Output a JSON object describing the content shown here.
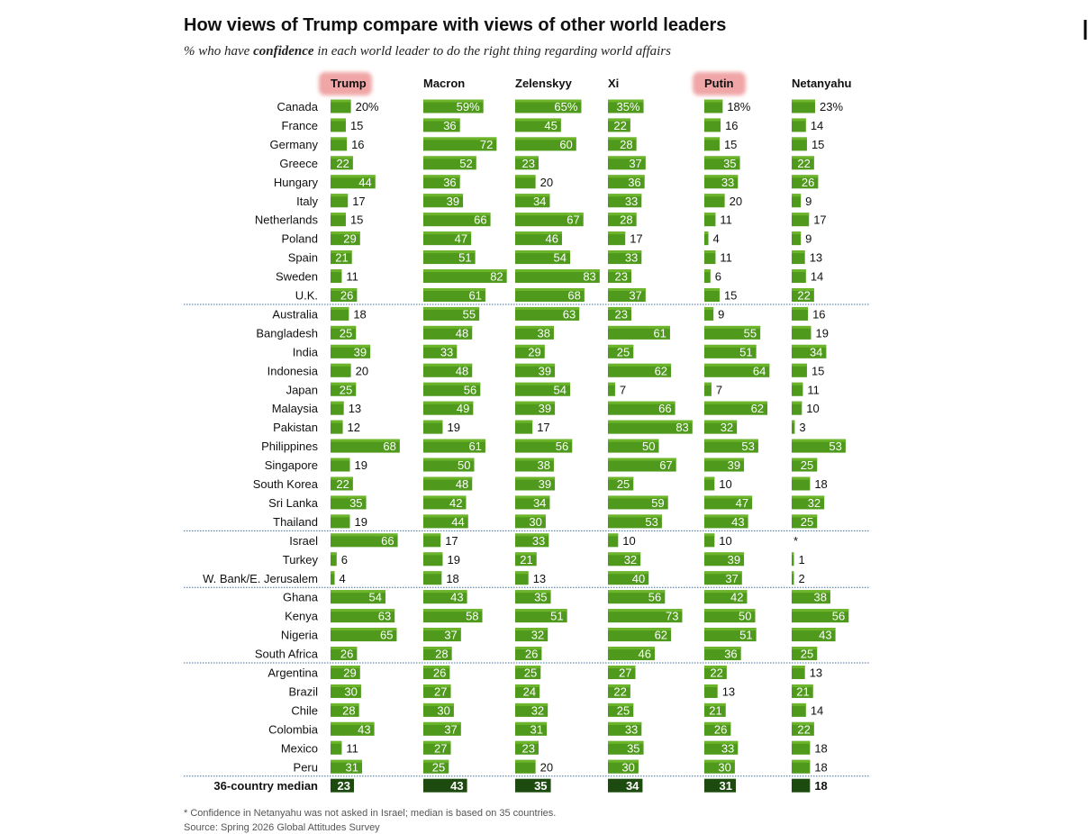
{
  "chart_data": {
    "type": "bar",
    "title": "How views of Trump compare with views of other world leaders",
    "subtitle_pre": "% who have ",
    "subtitle_emphasis": "confidence",
    "subtitle_post": " in each world leader to do the right thing regarding world affairs",
    "leaders": [
      "Trump",
      "Macron",
      "Zelenskyy",
      "Xi",
      "Putin",
      "Netanyahu"
    ],
    "highlighted_leaders": [
      "Trump",
      "Putin"
    ],
    "groups": [
      {
        "rows": [
          {
            "country": "Canada",
            "values": [
              20,
              59,
              65,
              35,
              18,
              23
            ],
            "labels": [
              "20%",
              "59%",
              "65%",
              "35%",
              "18%",
              "23%"
            ]
          },
          {
            "country": "France",
            "values": [
              15,
              36,
              45,
              22,
              16,
              14
            ]
          },
          {
            "country": "Germany",
            "values": [
              16,
              72,
              60,
              28,
              15,
              15
            ]
          },
          {
            "country": "Greece",
            "values": [
              22,
              52,
              23,
              37,
              35,
              22
            ]
          },
          {
            "country": "Hungary",
            "values": [
              44,
              36,
              20,
              36,
              33,
              26
            ]
          },
          {
            "country": "Italy",
            "values": [
              17,
              39,
              34,
              33,
              20,
              9
            ]
          },
          {
            "country": "Netherlands",
            "values": [
              15,
              66,
              67,
              28,
              11,
              17
            ]
          },
          {
            "country": "Poland",
            "values": [
              29,
              47,
              46,
              17,
              4,
              9
            ]
          },
          {
            "country": "Spain",
            "values": [
              21,
              51,
              54,
              33,
              11,
              13
            ]
          },
          {
            "country": "Sweden",
            "values": [
              11,
              82,
              83,
              23,
              6,
              14
            ]
          },
          {
            "country": "U.K.",
            "values": [
              26,
              61,
              68,
              37,
              15,
              22
            ]
          }
        ]
      },
      {
        "rows": [
          {
            "country": "Australia",
            "values": [
              18,
              55,
              63,
              23,
              9,
              16
            ]
          },
          {
            "country": "Bangladesh",
            "values": [
              25,
              48,
              38,
              61,
              55,
              19
            ]
          },
          {
            "country": "India",
            "values": [
              39,
              33,
              29,
              25,
              51,
              34
            ]
          },
          {
            "country": "Indonesia",
            "values": [
              20,
              48,
              39,
              62,
              64,
              15
            ]
          },
          {
            "country": "Japan",
            "values": [
              25,
              56,
              54,
              7,
              7,
              11
            ]
          },
          {
            "country": "Malaysia",
            "values": [
              13,
              49,
              39,
              66,
              62,
              10
            ]
          },
          {
            "country": "Pakistan",
            "values": [
              12,
              19,
              17,
              83,
              32,
              3
            ]
          },
          {
            "country": "Philippines",
            "values": [
              68,
              61,
              56,
              50,
              53,
              53
            ]
          },
          {
            "country": "Singapore",
            "values": [
              19,
              50,
              38,
              67,
              39,
              25
            ]
          },
          {
            "country": "South Korea",
            "values": [
              22,
              48,
              39,
              25,
              10,
              18
            ]
          },
          {
            "country": "Sri Lanka",
            "values": [
              35,
              42,
              34,
              59,
              47,
              32
            ]
          },
          {
            "country": "Thailand",
            "values": [
              19,
              44,
              30,
              53,
              43,
              25
            ]
          }
        ]
      },
      {
        "rows": [
          {
            "country": "Israel",
            "values": [
              66,
              17,
              33,
              10,
              10,
              null
            ],
            "labels": [
              "66",
              "17",
              "33",
              "10",
              "10",
              "*"
            ]
          },
          {
            "country": "Turkey",
            "values": [
              6,
              19,
              21,
              32,
              39,
              1
            ]
          },
          {
            "country": "W. Bank/E. Jerusalem",
            "values": [
              4,
              18,
              13,
              40,
              37,
              2
            ]
          }
        ]
      },
      {
        "rows": [
          {
            "country": "Ghana",
            "values": [
              54,
              43,
              35,
              56,
              42,
              38
            ]
          },
          {
            "country": "Kenya",
            "values": [
              63,
              58,
              51,
              73,
              50,
              56
            ]
          },
          {
            "country": "Nigeria",
            "values": [
              65,
              37,
              32,
              62,
              51,
              43
            ]
          },
          {
            "country": "South Africa",
            "values": [
              26,
              28,
              26,
              46,
              36,
              25
            ]
          }
        ]
      },
      {
        "rows": [
          {
            "country": "Argentina",
            "values": [
              29,
              26,
              25,
              27,
              22,
              13
            ]
          },
          {
            "country": "Brazil",
            "values": [
              30,
              27,
              24,
              22,
              13,
              21
            ]
          },
          {
            "country": "Chile",
            "values": [
              28,
              30,
              32,
              25,
              21,
              14
            ]
          },
          {
            "country": "Colombia",
            "values": [
              43,
              37,
              31,
              33,
              26,
              22
            ]
          },
          {
            "country": "Mexico",
            "values": [
              11,
              27,
              23,
              35,
              33,
              18
            ]
          },
          {
            "country": "Peru",
            "values": [
              31,
              25,
              20,
              30,
              30,
              18
            ]
          }
        ]
      }
    ],
    "median": {
      "country": "36-country median",
      "values": [
        23,
        43,
        35,
        34,
        31,
        18
      ]
    },
    "footnote": "* Confidence in Netanyahu was not asked in Israel; median is based on 35 countries.",
    "source": "Source: Spring 2026 Global Attitudes Survey",
    "colors": {
      "bar": "#4f9a1c",
      "bar_light": "#6cb52b",
      "median_bar": "#1d4a0e",
      "highlight": "#f0a6a6",
      "divider": "#3f6fa0"
    }
  }
}
